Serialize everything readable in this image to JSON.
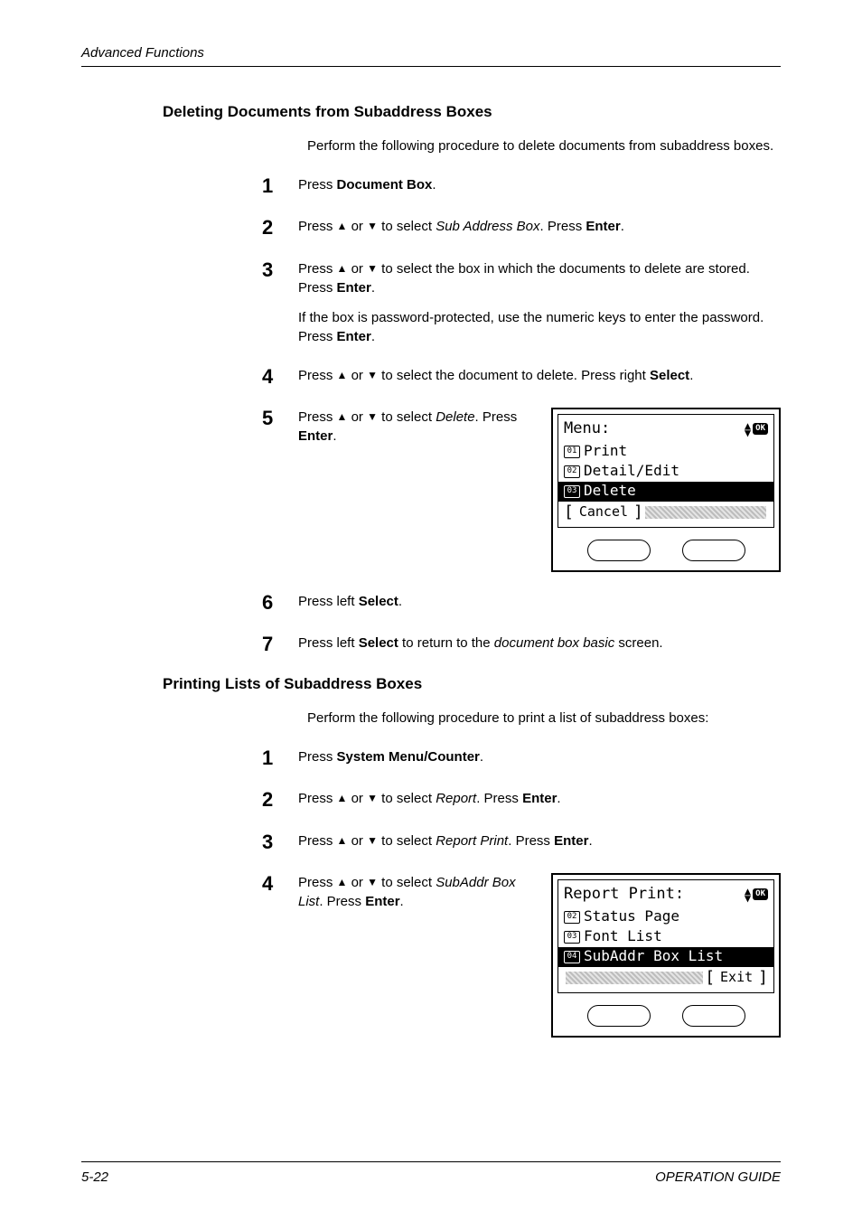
{
  "header": {
    "running": "Advanced Functions"
  },
  "footer": {
    "page": "5-22",
    "guide": "OPERATION GUIDE"
  },
  "colors": {
    "text": "#000000",
    "background": "#ffffff",
    "lcd_highlight_bg": "#000000",
    "lcd_highlight_fg": "#ffffff",
    "shade1": "#bdbdbd",
    "shade2": "#e4e4e4"
  },
  "typography": {
    "body_fontsize": 15,
    "heading_fontsize": 17,
    "step_num_fontsize": 22,
    "lcd_fontsize": 16
  },
  "sectionA": {
    "heading": "Deleting Documents from Subaddress Boxes",
    "intro": "Perform the following procedure to delete documents from subaddress boxes.",
    "steps": {
      "1": {
        "pre": "Press ",
        "b1": "Document Box",
        "post": "."
      },
      "2": {
        "pre": "Press ",
        "tri_up": "▲",
        "mid1": " or ",
        "tri_dn": "▼",
        "mid2": " to select ",
        "i1": "Sub Address Box",
        "mid3": ". Press ",
        "b1": "Enter",
        "post": "."
      },
      "3": {
        "p1": {
          "pre": "Press ",
          "tri_up": "▲",
          "mid1": " or ",
          "tri_dn": "▼",
          "mid2": " to select the box in which the documents to delete are stored. Press ",
          "b1": "Enter",
          "post": "."
        },
        "p2": {
          "pre": "If the box is password-protected, use the numeric keys to enter the password. Press ",
          "b1": "Enter",
          "post": "."
        }
      },
      "4": {
        "pre": "Press ",
        "tri_up": "▲",
        "mid1": " or ",
        "tri_dn": "▼",
        "mid2": " to select the document to delete. Press right ",
        "b1": "Select",
        "post": "."
      },
      "5": {
        "pre": "Press ",
        "tri_up": "▲",
        "mid1": " or ",
        "tri_dn": "▼",
        "mid2": " to select ",
        "i1": "Delete",
        "mid3": ". Press ",
        "b1": "Enter",
        "post": "."
      },
      "6": {
        "pre": "Press left ",
        "b1": "Select",
        "post": "."
      },
      "7": {
        "pre": "Press left ",
        "b1": "Select",
        "mid1": " to return to the ",
        "i1": "document box basic",
        "post": " screen."
      }
    },
    "lcd": {
      "title": "Menu:",
      "ok": "OK",
      "rows": [
        {
          "num": "01",
          "label": "Print",
          "highlight": false
        },
        {
          "num": "02",
          "label": "Detail/Edit",
          "highlight": false
        },
        {
          "num": "03",
          "label": "Delete",
          "highlight": true
        }
      ],
      "footer_left": "Cancel",
      "footer_left_bracket_l": "[",
      "footer_left_bracket_r": "]"
    }
  },
  "sectionB": {
    "heading": "Printing Lists of Subaddress Boxes",
    "intro": "Perform the following procedure to print a list of subaddress boxes:",
    "steps": {
      "1": {
        "pre": "Press ",
        "b1": "System Menu/Counter",
        "post": "."
      },
      "2": {
        "pre": "Press ",
        "tri_up": "▲",
        "mid1": " or ",
        "tri_dn": "▼",
        "mid2": " to select ",
        "i1": "Report",
        "mid3": ". Press ",
        "b1": "Enter",
        "post": "."
      },
      "3": {
        "pre": "Press ",
        "tri_up": "▲",
        "mid1": " or ",
        "tri_dn": "▼",
        "mid2": " to select ",
        "i1": "Report Print",
        "mid3": ". Press ",
        "b1": "Enter",
        "post": "."
      },
      "4": {
        "pre": "Press ",
        "tri_up": "▲",
        "mid1": " or ",
        "tri_dn": "▼",
        "mid2": " to select ",
        "i1": "SubAddr Box List",
        "mid3": ". Press ",
        "b1": "Enter",
        "post": "."
      }
    },
    "lcd": {
      "title": "Report Print:",
      "ok": "OK",
      "rows": [
        {
          "num": "02",
          "label": "Status Page",
          "highlight": false
        },
        {
          "num": "03",
          "label": "Font List",
          "highlight": false
        },
        {
          "num": "04",
          "label": "SubAddr Box List",
          "highlight": true
        }
      ],
      "footer_right": "Exit",
      "footer_right_bracket_l": "[",
      "footer_right_bracket_r": "]"
    }
  }
}
